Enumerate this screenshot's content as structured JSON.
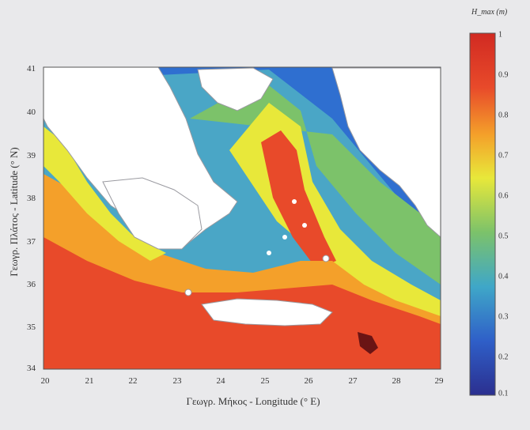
{
  "map": {
    "x_axis": {
      "label": "Γεωγρ. Μήκος - Longitude (° E)",
      "ticks": [
        "20",
        "21",
        "22",
        "23",
        "24",
        "25",
        "26",
        "27",
        "28",
        "29"
      ]
    },
    "y_axis": {
      "label": "Γεωγρ. Πλάτος - Latitude (° N)",
      "ticks": [
        "41",
        "40",
        "39",
        "38",
        "37",
        "36",
        "35",
        "34"
      ]
    },
    "colorbar": {
      "title": "H_max (m)",
      "ticks": [
        "1",
        "0.9",
        "0.8",
        "0.7",
        "0.6",
        "0.5",
        "0.4",
        "0.3",
        "0.2",
        "0.1"
      ],
      "range": [
        0.1,
        1
      ],
      "colormap": [
        "#2b2f8f",
        "#2f6fd0",
        "#3fa7c8",
        "#7cc26a",
        "#e8e83a",
        "#f4a02a",
        "#e84a2a",
        "#d12a22"
      ]
    },
    "colors": {
      "land": "#ffffff",
      "coast": "#9a9aa0",
      "frame": "#555555"
    }
  }
}
